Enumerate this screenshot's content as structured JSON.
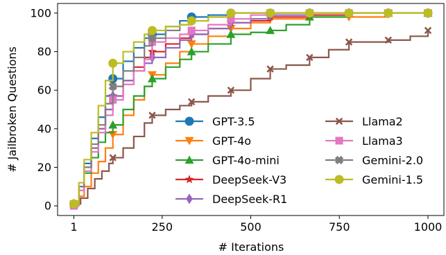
{
  "chart_data": {
    "type": "line",
    "title": "",
    "xlabel": "# Iterations",
    "ylabel": "# Jailbroken Questions",
    "xlim": [
      -45,
      1045
    ],
    "ylim": [
      -5,
      105
    ],
    "xticks": [
      1,
      250,
      500,
      750,
      1000
    ],
    "xtick_labels": [
      "1",
      "250",
      "500",
      "750",
      "1000"
    ],
    "yticks": [
      0,
      20,
      40,
      60,
      80,
      100
    ],
    "ytick_labels": [
      "0",
      "20",
      "40",
      "60",
      "80",
      "100"
    ],
    "grid": false,
    "legend": {
      "placement": "lower-right",
      "columns": 2
    },
    "series": [
      {
        "name": "GPT-3.5",
        "color": "#1f77b4",
        "marker": "circle",
        "points": [
          [
            1,
            1
          ],
          [
            15,
            10
          ],
          [
            30,
            22
          ],
          [
            50,
            35
          ],
          [
            70,
            46
          ],
          [
            90,
            57
          ],
          [
            111,
            66
          ],
          [
            140,
            75
          ],
          [
            170,
            82
          ],
          [
            200,
            87
          ],
          [
            222,
            89
          ],
          [
            260,
            93
          ],
          [
            300,
            96
          ],
          [
            333,
            98
          ],
          [
            380,
            99
          ],
          [
            444,
            100
          ],
          [
            555,
            100
          ],
          [
            666,
            100
          ],
          [
            777,
            100
          ],
          [
            888,
            100
          ],
          [
            1000,
            100
          ]
        ]
      },
      {
        "name": "GPT-4o",
        "color": "#ff7f0e",
        "marker": "triangle-down",
        "points": [
          [
            1,
            1
          ],
          [
            15,
            5
          ],
          [
            30,
            10
          ],
          [
            50,
            17
          ],
          [
            70,
            23
          ],
          [
            90,
            30
          ],
          [
            111,
            37
          ],
          [
            140,
            47
          ],
          [
            170,
            55
          ],
          [
            200,
            62
          ],
          [
            222,
            68
          ],
          [
            260,
            74
          ],
          [
            300,
            80
          ],
          [
            333,
            84
          ],
          [
            380,
            88
          ],
          [
            444,
            92
          ],
          [
            500,
            95
          ],
          [
            555,
            97
          ],
          [
            666,
            98
          ],
          [
            777,
            98
          ],
          [
            888,
            100
          ],
          [
            1000,
            100
          ]
        ]
      },
      {
        "name": "GPT-4o-mini",
        "color": "#2ca02c",
        "marker": "triangle-up",
        "points": [
          [
            1,
            1
          ],
          [
            15,
            8
          ],
          [
            30,
            17
          ],
          [
            50,
            25
          ],
          [
            70,
            33
          ],
          [
            90,
            38
          ],
          [
            111,
            42
          ],
          [
            140,
            50
          ],
          [
            170,
            57
          ],
          [
            200,
            62
          ],
          [
            222,
            66
          ],
          [
            260,
            72
          ],
          [
            300,
            76
          ],
          [
            333,
            80
          ],
          [
            380,
            84
          ],
          [
            444,
            89
          ],
          [
            500,
            90
          ],
          [
            555,
            91
          ],
          [
            600,
            94
          ],
          [
            666,
            98
          ],
          [
            777,
            100
          ],
          [
            888,
            100
          ],
          [
            1000,
            100
          ]
        ]
      },
      {
        "name": "DeepSeek-V3",
        "color": "#d62728",
        "marker": "star",
        "points": [
          [
            1,
            1
          ],
          [
            15,
            10
          ],
          [
            30,
            20
          ],
          [
            50,
            30
          ],
          [
            70,
            40
          ],
          [
            90,
            50
          ],
          [
            111,
            57
          ],
          [
            140,
            65
          ],
          [
            170,
            72
          ],
          [
            200,
            77
          ],
          [
            222,
            80
          ],
          [
            260,
            84
          ],
          [
            300,
            87
          ],
          [
            333,
            89
          ],
          [
            380,
            92
          ],
          [
            444,
            95
          ],
          [
            500,
            96
          ],
          [
            555,
            98
          ],
          [
            666,
            99
          ],
          [
            777,
            100
          ],
          [
            888,
            100
          ],
          [
            1000,
            100
          ]
        ]
      },
      {
        "name": "DeepSeek-R1",
        "color": "#9467bd",
        "marker": "diamond",
        "points": [
          [
            1,
            1
          ],
          [
            15,
            10
          ],
          [
            30,
            20
          ],
          [
            50,
            30
          ],
          [
            70,
            40
          ],
          [
            90,
            50
          ],
          [
            111,
            57
          ],
          [
            140,
            65
          ],
          [
            170,
            70
          ],
          [
            200,
            74
          ],
          [
            222,
            77
          ],
          [
            260,
            82
          ],
          [
            300,
            86
          ],
          [
            333,
            89
          ],
          [
            380,
            92
          ],
          [
            444,
            95
          ],
          [
            500,
            97
          ],
          [
            555,
            99
          ],
          [
            666,
            100
          ],
          [
            777,
            100
          ],
          [
            888,
            100
          ],
          [
            1000,
            100
          ]
        ]
      },
      {
        "name": "Llama2",
        "color": "#8c564b",
        "marker": "x",
        "points": [
          [
            1,
            1
          ],
          [
            20,
            4
          ],
          [
            40,
            9
          ],
          [
            60,
            14
          ],
          [
            80,
            18
          ],
          [
            100,
            22
          ],
          [
            111,
            25
          ],
          [
            140,
            30
          ],
          [
            170,
            36
          ],
          [
            200,
            43
          ],
          [
            222,
            47
          ],
          [
            260,
            50
          ],
          [
            300,
            52
          ],
          [
            333,
            54
          ],
          [
            380,
            57
          ],
          [
            444,
            60
          ],
          [
            500,
            66
          ],
          [
            555,
            71
          ],
          [
            600,
            73
          ],
          [
            666,
            77
          ],
          [
            720,
            81
          ],
          [
            777,
            85
          ],
          [
            888,
            86
          ],
          [
            950,
            88
          ],
          [
            1000,
            91
          ]
        ]
      },
      {
        "name": "Llama3",
        "color": "#e377c2",
        "marker": "square",
        "points": [
          [
            1,
            0
          ],
          [
            15,
            8
          ],
          [
            30,
            18
          ],
          [
            50,
            28
          ],
          [
            70,
            38
          ],
          [
            90,
            47
          ],
          [
            111,
            55
          ],
          [
            140,
            63
          ],
          [
            170,
            70
          ],
          [
            200,
            76
          ],
          [
            222,
            85
          ],
          [
            260,
            87
          ],
          [
            300,
            89
          ],
          [
            333,
            91
          ],
          [
            380,
            94
          ],
          [
            444,
            97
          ],
          [
            500,
            99
          ],
          [
            555,
            100
          ],
          [
            666,
            100
          ],
          [
            777,
            100
          ],
          [
            888,
            100
          ],
          [
            1000,
            100
          ]
        ]
      },
      {
        "name": "Gemini-2.0",
        "color": "#7f7f7f",
        "marker": "plus-filled",
        "points": [
          [
            1,
            1
          ],
          [
            15,
            10
          ],
          [
            30,
            20
          ],
          [
            50,
            32
          ],
          [
            70,
            42
          ],
          [
            90,
            53
          ],
          [
            111,
            62
          ],
          [
            140,
            70
          ],
          [
            170,
            77
          ],
          [
            200,
            83
          ],
          [
            222,
            87
          ],
          [
            260,
            91
          ],
          [
            300,
            94
          ],
          [
            333,
            96
          ],
          [
            380,
            98
          ],
          [
            444,
            100
          ],
          [
            555,
            100
          ],
          [
            666,
            100
          ],
          [
            777,
            100
          ],
          [
            888,
            100
          ],
          [
            1000,
            100
          ]
        ]
      },
      {
        "name": "Gemini-1.5",
        "color": "#bcbd22",
        "marker": "circle",
        "points": [
          [
            1,
            1
          ],
          [
            15,
            12
          ],
          [
            30,
            24
          ],
          [
            50,
            38
          ],
          [
            70,
            52
          ],
          [
            90,
            65
          ],
          [
            111,
            74
          ],
          [
            140,
            80
          ],
          [
            170,
            85
          ],
          [
            200,
            89
          ],
          [
            222,
            91
          ],
          [
            260,
            93
          ],
          [
            300,
            94
          ],
          [
            333,
            96
          ],
          [
            380,
            98
          ],
          [
            444,
            100
          ],
          [
            555,
            100
          ],
          [
            666,
            100
          ],
          [
            777,
            100
          ],
          [
            888,
            100
          ],
          [
            1000,
            100
          ]
        ]
      }
    ]
  }
}
